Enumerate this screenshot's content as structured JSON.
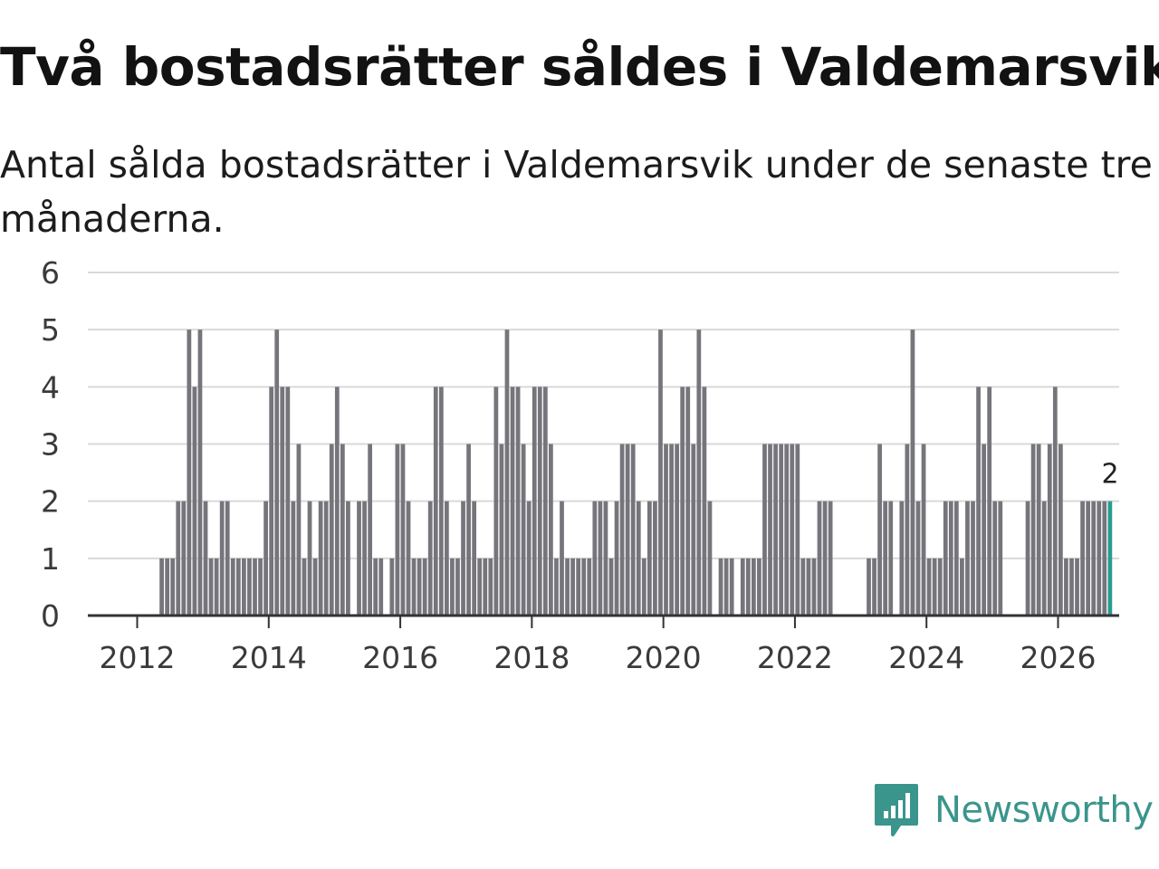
{
  "title": "Två bostadsrätter såldes i Valdemarsvik",
  "subtitle": "Antal sålda bostadsrätter i Valdemarsvik under de senaste tre månaderna.",
  "logo": {
    "text": "Newsworthy",
    "icon": "newsworthy-chart-icon",
    "color": "#3a958c"
  },
  "colors": {
    "bar": "#75757b",
    "highlight": "#2a9d8f",
    "grid": "#d9d9d9",
    "axis": "#333333"
  },
  "chart_data": {
    "type": "bar",
    "title": "Två bostadsrätter såldes i Valdemarsvik",
    "xlabel": "",
    "ylabel": "",
    "ylim": [
      0,
      6
    ],
    "yticks": [
      "0",
      "1",
      "2",
      "3",
      "4",
      "5",
      "6"
    ],
    "xticks": [
      "2012",
      "2014",
      "2016",
      "2018",
      "2020",
      "2022",
      "2024",
      "2026"
    ],
    "grid": true,
    "start": "2012-01",
    "highlight_last": true,
    "last_label": "2",
    "values": [
      0,
      0,
      0,
      0,
      1,
      1,
      1,
      2,
      2,
      5,
      4,
      5,
      2,
      1,
      1,
      2,
      2,
      1,
      1,
      1,
      1,
      1,
      1,
      2,
      4,
      5,
      4,
      4,
      2,
      3,
      1,
      2,
      1,
      2,
      2,
      3,
      4,
      3,
      2,
      0,
      2,
      2,
      3,
      1,
      1,
      0,
      1,
      3,
      3,
      2,
      1,
      1,
      1,
      2,
      4,
      4,
      2,
      1,
      1,
      2,
      3,
      2,
      1,
      1,
      1,
      4,
      3,
      5,
      4,
      4,
      3,
      2,
      4,
      4,
      4,
      3,
      1,
      2,
      1,
      1,
      1,
      1,
      1,
      2,
      2,
      2,
      1,
      2,
      3,
      3,
      3,
      2,
      1,
      2,
      2,
      5,
      3,
      3,
      3,
      4,
      4,
      3,
      5,
      4,
      2,
      0,
      1,
      1,
      1,
      0,
      1,
      1,
      1,
      1,
      3,
      3,
      3,
      3,
      3,
      3,
      3,
      1,
      1,
      1,
      2,
      2,
      2,
      0,
      0,
      0,
      0,
      0,
      0,
      1,
      1,
      3,
      2,
      2,
      0,
      2,
      3,
      5,
      2,
      3,
      1,
      1,
      1,
      2,
      2,
      2,
      1,
      2,
      2,
      4,
      3,
      4,
      2,
      2,
      0,
      0,
      0,
      0,
      2,
      3,
      3,
      2,
      3,
      4,
      3,
      1,
      1,
      1,
      2,
      2,
      2,
      2,
      2,
      2
    ]
  }
}
